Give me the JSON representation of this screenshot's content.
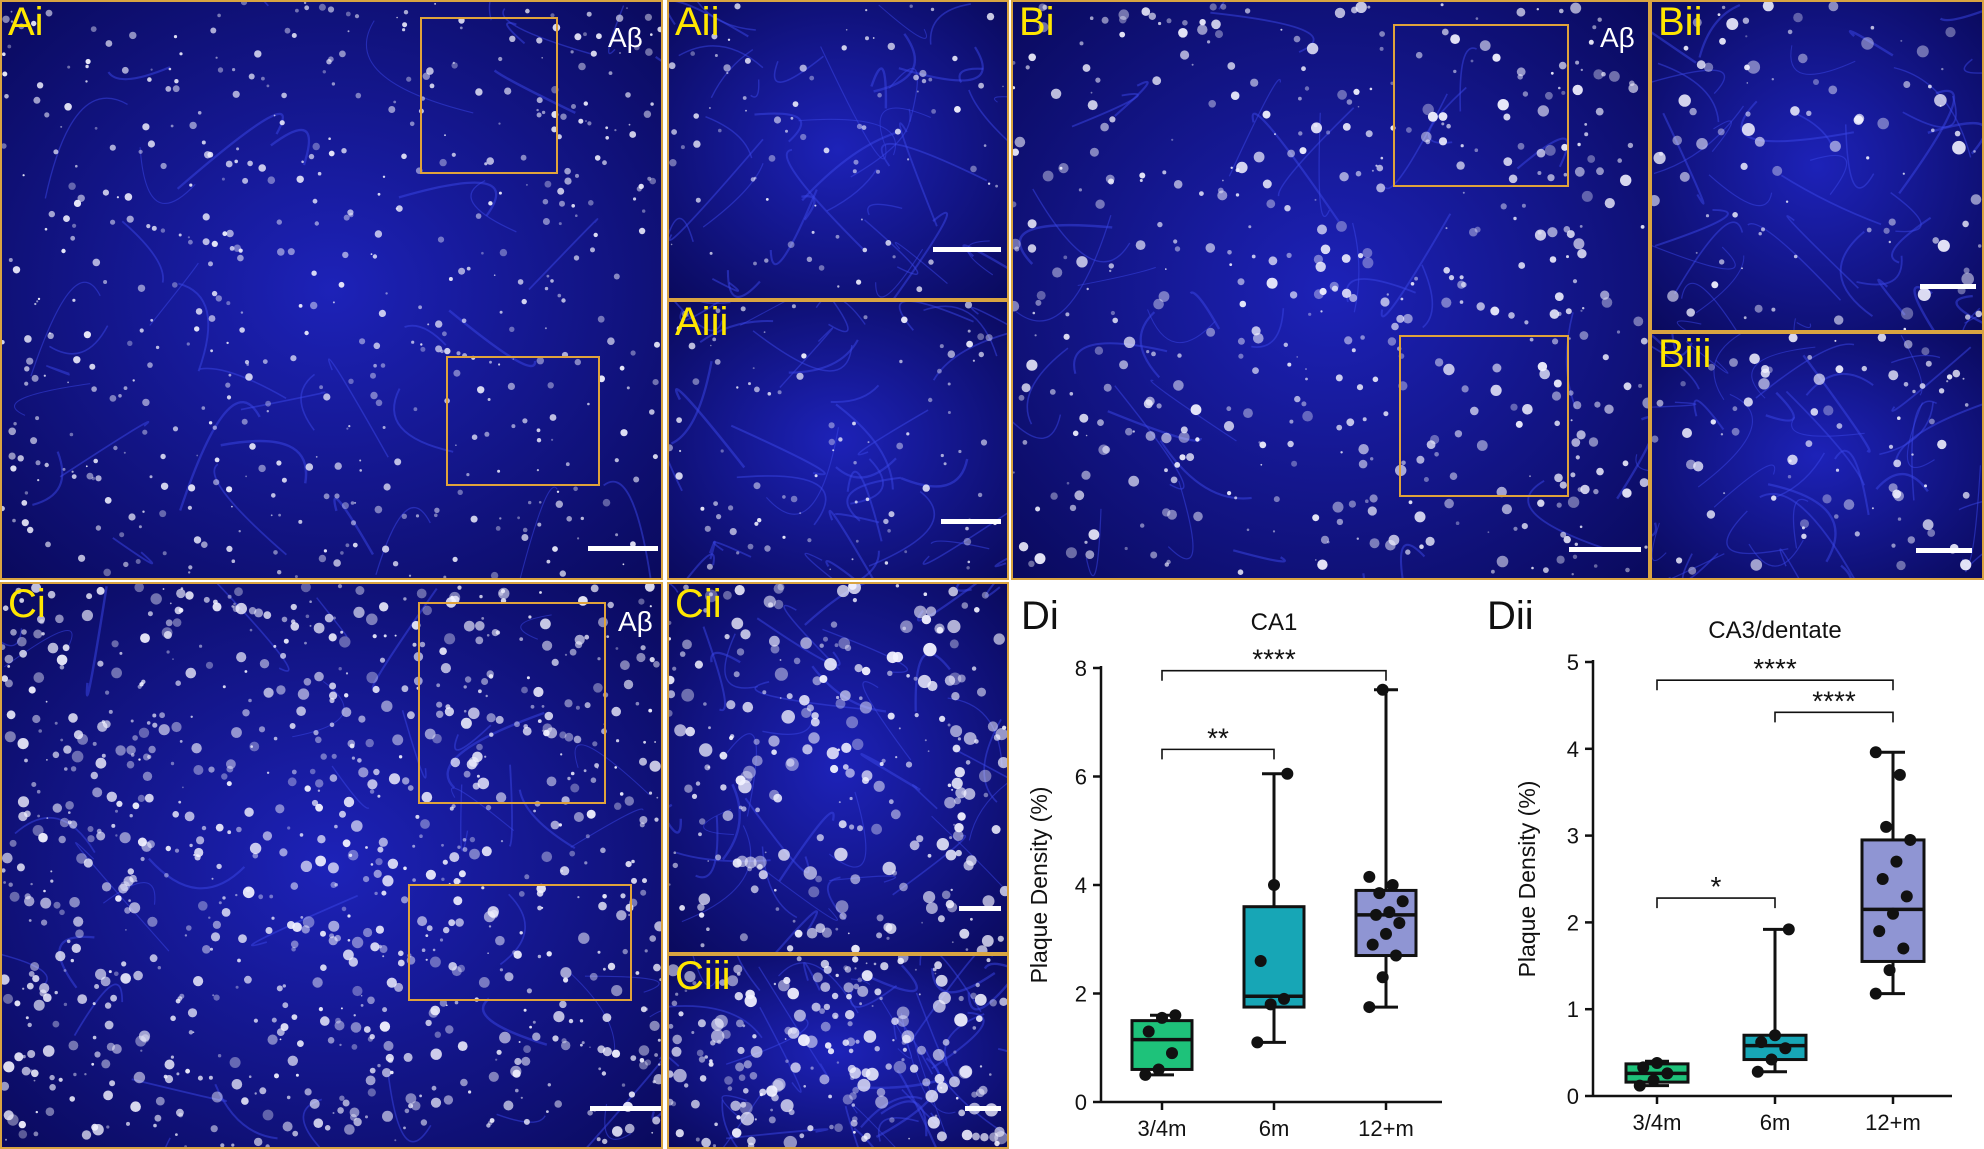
{
  "panels": {
    "Ai": {
      "label": "Ai",
      "marker": "Aβ"
    },
    "Aii": {
      "label": "Aii"
    },
    "Aiii": {
      "label": "Aiii"
    },
    "Bi": {
      "label": "Bi",
      "marker": "Aβ"
    },
    "Bii": {
      "label": "Bii"
    },
    "Biii": {
      "label": "Biii"
    },
    "Ci": {
      "label": "Ci",
      "marker": "Aβ"
    },
    "Cii": {
      "label": "Cii"
    },
    "Ciii": {
      "label": "Ciii"
    }
  },
  "chart_data": [
    {
      "panel_label": "Di",
      "type": "box",
      "title": "CA1",
      "ylabel": "Plaque Density (%)",
      "categories": [
        "3/4m",
        "6m",
        "12+m"
      ],
      "ylim": [
        0,
        8
      ],
      "yticks": [
        0,
        2,
        4,
        6,
        8
      ],
      "colors": [
        "#1ec27a",
        "#17a6b6",
        "#8f95d3"
      ],
      "boxes": [
        {
          "min": 0.5,
          "q1": 0.6,
          "median": 1.15,
          "q3": 1.5,
          "max": 1.6
        },
        {
          "min": 1.1,
          "q1": 1.75,
          "median": 1.95,
          "q3": 3.6,
          "max": 6.05
        },
        {
          "min": 1.75,
          "q1": 2.7,
          "median": 3.45,
          "q3": 3.9,
          "max": 7.6
        }
      ],
      "points": [
        [
          0.5,
          0.6,
          0.9,
          1.3,
          1.55,
          1.6
        ],
        [
          1.1,
          1.8,
          1.9,
          2.6,
          4.0,
          6.05
        ],
        [
          1.75,
          2.3,
          2.7,
          2.9,
          3.1,
          3.3,
          3.45,
          3.5,
          3.7,
          3.85,
          4.0,
          4.15,
          7.6
        ]
      ],
      "significance": [
        {
          "from": 0,
          "to": 1,
          "label": "**",
          "level": 6.5
        },
        {
          "from": 0,
          "to": 2,
          "label": "****",
          "level": 7.95
        }
      ]
    },
    {
      "panel_label": "Dii",
      "type": "box",
      "title": "CA3/dentate",
      "ylabel": "Plaque Density (%)",
      "categories": [
        "3/4m",
        "6m",
        "12+m"
      ],
      "ylim": [
        0,
        5
      ],
      "yticks": [
        0,
        1,
        2,
        3,
        4,
        5
      ],
      "colors": [
        "#1ec27a",
        "#17a6b6",
        "#8f95d3"
      ],
      "boxes": [
        {
          "min": 0.12,
          "q1": 0.16,
          "median": 0.26,
          "q3": 0.37,
          "max": 0.4
        },
        {
          "min": 0.28,
          "q1": 0.42,
          "median": 0.58,
          "q3": 0.7,
          "max": 1.92
        },
        {
          "min": 1.18,
          "q1": 1.55,
          "median": 2.15,
          "q3": 2.95,
          "max": 3.96
        }
      ],
      "points": [
        [
          0.12,
          0.18,
          0.26,
          0.33,
          0.38
        ],
        [
          0.28,
          0.42,
          0.55,
          0.62,
          0.7,
          1.92
        ],
        [
          1.18,
          1.45,
          1.7,
          1.9,
          2.1,
          2.3,
          2.5,
          2.7,
          2.95,
          3.1,
          3.7,
          3.96
        ]
      ],
      "significance": [
        {
          "from": 0,
          "to": 1,
          "label": "*",
          "level": 2.28
        },
        {
          "from": 1,
          "to": 2,
          "label": "****",
          "level": 4.42
        },
        {
          "from": 0,
          "to": 2,
          "label": "****",
          "level": 4.79
        }
      ]
    }
  ]
}
